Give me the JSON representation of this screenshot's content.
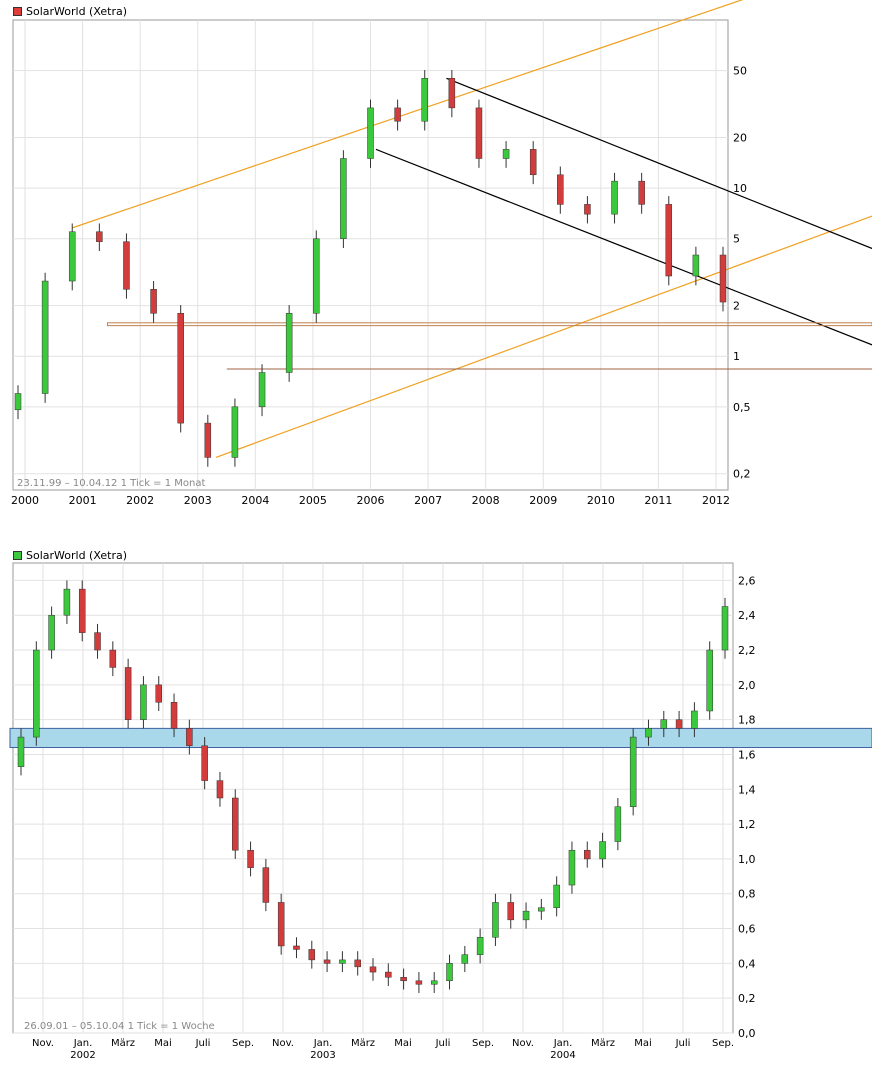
{
  "chart_data": [
    {
      "type": "candlestick",
      "title": "SolarWorld (Xetra)",
      "legend_color": "#e03c3c",
      "scale": "log",
      "info": "23.11.99 – 10.04.12   1 Tick = 1 Monat",
      "y_ticks": [
        "50",
        "20",
        "10",
        "5",
        "2",
        "1",
        "0,5",
        "0,2"
      ],
      "y_tick_values": [
        50,
        20,
        10,
        5,
        2,
        1,
        0.5,
        0.2
      ],
      "x_ticks": [
        "2000",
        "2001",
        "2002",
        "2003",
        "2004",
        "2005",
        "2006",
        "2007",
        "2008",
        "2009",
        "2010",
        "2011",
        "2012"
      ],
      "ylim": [
        0.16,
        100
      ],
      "colors": {
        "up": "#3cc83c",
        "down": "#d23c3c",
        "resistance": "#f0a020",
        "trend": "#000000",
        "support": "#a06040"
      },
      "series_close_approx": [
        0.6,
        2.8,
        5.5,
        4.8,
        2.5,
        1.8,
        0.4,
        0.25,
        0.5,
        0.8,
        1.8,
        5,
        15,
        30,
        25,
        45,
        30,
        15,
        17,
        12,
        8,
        7,
        11,
        8,
        3,
        4,
        2.1
      ]
    },
    {
      "type": "candlestick",
      "title": "SolarWorld (Xetra)",
      "legend_color": "#3cc83c",
      "scale": "linear",
      "info": "26.09.01 – 05.10.04   1 Tick = 1 Woche",
      "y_ticks": [
        "2,6",
        "2,4",
        "2,2",
        "2,0",
        "1,8",
        "1,6",
        "1,4",
        "1,2",
        "1,0",
        "0,8",
        "0,6",
        "0,4",
        "0,2",
        "0,0"
      ],
      "y_tick_values": [
        2.6,
        2.4,
        2.2,
        2.0,
        1.8,
        1.6,
        1.4,
        1.2,
        1.0,
        0.8,
        0.6,
        0.4,
        0.2,
        0.0
      ],
      "x_ticks_top": [
        "Nov.",
        "Jan.",
        "März",
        "Mai",
        "Juli",
        "Sep.",
        "Nov.",
        "Jan.",
        "März",
        "Mai",
        "Juli",
        "Sep.",
        "Nov.",
        "Jan.",
        "März",
        "Mai",
        "Juli",
        "Sep."
      ],
      "x_ticks_year": [
        "2002",
        "2003",
        "2004"
      ],
      "ylim": [
        0.0,
        2.7
      ],
      "zone": [
        1.64,
        1.75
      ],
      "colors": {
        "up": "#3cc83c",
        "down": "#d23c3c",
        "zone": "#a8d8ea"
      },
      "series_close_approx": [
        1.7,
        2.2,
        2.4,
        2.55,
        2.3,
        2.2,
        2.1,
        1.8,
        2.0,
        1.9,
        1.75,
        1.65,
        1.45,
        1.35,
        1.05,
        0.95,
        0.75,
        0.5,
        0.48,
        0.42,
        0.4,
        0.42,
        0.38,
        0.35,
        0.32,
        0.3,
        0.28,
        0.3,
        0.4,
        0.45,
        0.55,
        0.75,
        0.65,
        0.7,
        0.72,
        0.85,
        1.05,
        1.0,
        1.1,
        1.3,
        1.7,
        1.75,
        1.8,
        1.75,
        1.85,
        2.2,
        2.45
      ]
    }
  ]
}
